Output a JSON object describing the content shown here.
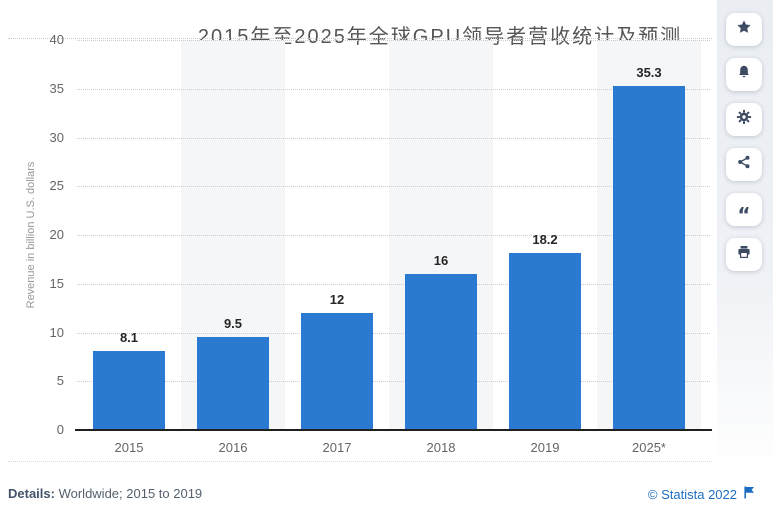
{
  "title": "2015年至2025年全球GPU领导者营收统计及预测",
  "chart_data": {
    "type": "bar",
    "title": "2015年至2025年全球GPU领导者营收统计及预测",
    "categories": [
      "2015",
      "2016",
      "2017",
      "2018",
      "2019",
      "2025*"
    ],
    "values": [
      8.1,
      9.5,
      12,
      16,
      18.2,
      35.3
    ],
    "value_labels": [
      "8.1",
      "9.5",
      "12",
      "16",
      "18.2",
      "35.3"
    ],
    "xlabel": "",
    "ylabel": "Revenue in billion U.S. dollars",
    "ylim": [
      0,
      40
    ],
    "y_ticks": [
      0,
      5,
      10,
      15,
      20,
      25,
      30,
      35,
      40
    ],
    "grid": "horizontal-dotted",
    "legend": "none",
    "bar_color": "#2b7ad2",
    "band_color": "#f5f6f8",
    "banded_categories": [
      "2016",
      "2018",
      "2025*"
    ]
  },
  "sidebar": {
    "icon_color": "#3d4c63",
    "items": [
      {
        "name": "favorite",
        "icon": "star-icon"
      },
      {
        "name": "notifications",
        "icon": "bell-icon"
      },
      {
        "name": "settings",
        "icon": "gear-icon"
      },
      {
        "name": "share",
        "icon": "share-icon"
      },
      {
        "name": "cite",
        "icon": "quote-icon",
        "glyph": "“"
      },
      {
        "name": "print",
        "icon": "print-icon"
      }
    ]
  },
  "footer": {
    "details_label": "Details:",
    "details_text": " Worldwide; 2015 to 2019",
    "copyright": "© Statista 2022",
    "link_color": "#1c6dc2"
  }
}
